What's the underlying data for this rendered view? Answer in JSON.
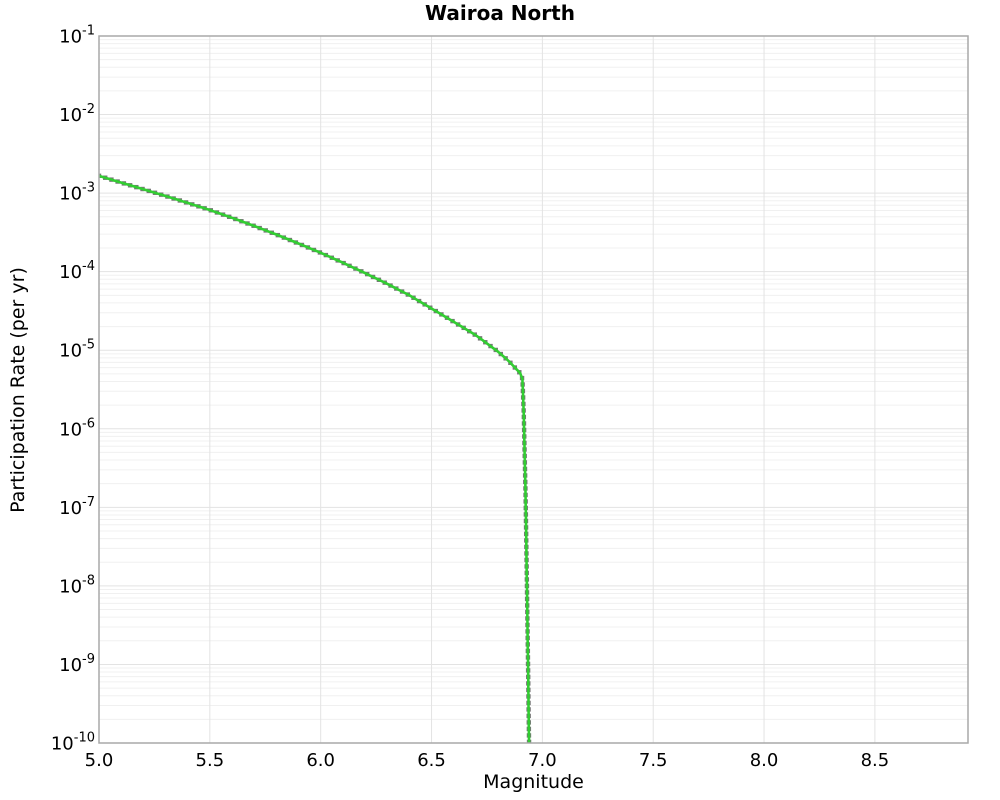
{
  "chart_data": {
    "type": "line",
    "title": "Wairoa North",
    "xlabel": "Magnitude",
    "ylabel": "Participation Rate (per yr)",
    "xlim": [
      5.0,
      8.92
    ],
    "y_scale": "log",
    "y_top_exponent": -1,
    "y_bottom_exponent": -10,
    "x_ticks": [
      5.0,
      5.5,
      6.0,
      6.5,
      7.0,
      7.5,
      8.0,
      8.5
    ],
    "x_tick_labels": [
      "5.0",
      "5.5",
      "6.0",
      "6.5",
      "7.0",
      "7.5",
      "8.0",
      "8.5"
    ],
    "y_tick_exponents": [
      -1,
      -2,
      -3,
      -4,
      -5,
      -6,
      -7,
      -8,
      -9,
      -10
    ],
    "grid": {
      "major": true,
      "minor": true,
      "legend": "none"
    },
    "colors": {
      "line": "#32cd32",
      "marker": "#767676",
      "grid_major": "#e3e3e3",
      "grid_minor": "#f0f0f0",
      "frame": "#a9a9a9",
      "text": "#000000",
      "background": "#ffffff"
    },
    "series": [
      {
        "name": "participation-rate",
        "points": [
          [
            5.0,
            0.00166
          ],
          [
            5.1,
            0.00136
          ],
          [
            5.2,
            0.00112
          ],
          [
            5.3,
            0.00092
          ],
          [
            5.4,
            0.00075
          ],
          [
            5.5,
            0.00061
          ],
          [
            5.6,
            0.000485
          ],
          [
            5.7,
            0.000382
          ],
          [
            5.8,
            0.000297
          ],
          [
            5.9,
            0.000228
          ],
          [
            6.0,
            0.000174
          ],
          [
            6.1,
            0.00013
          ],
          [
            6.2,
            9.6e-05
          ],
          [
            6.3,
            7e-05
          ],
          [
            6.4,
            5e-05
          ],
          [
            6.5,
            3.4e-05
          ],
          [
            6.6,
            2.3e-05
          ],
          [
            6.7,
            1.55e-05
          ],
          [
            6.8,
            9.6e-06
          ],
          [
            6.85,
            7.2e-06
          ],
          [
            6.9,
            5.1e-06
          ],
          [
            6.91,
            4.3e-06
          ],
          [
            6.916,
            1.6e-06
          ],
          [
            6.92,
            5e-07
          ],
          [
            6.924,
            1.55e-07
          ],
          [
            6.927,
            4.5e-08
          ],
          [
            6.93,
            1.2e-08
          ],
          [
            6.933,
            3e-09
          ],
          [
            6.936,
            7.5e-10
          ],
          [
            6.938,
            2.5e-10
          ],
          [
            6.94,
            1e-10
          ]
        ]
      }
    ]
  }
}
